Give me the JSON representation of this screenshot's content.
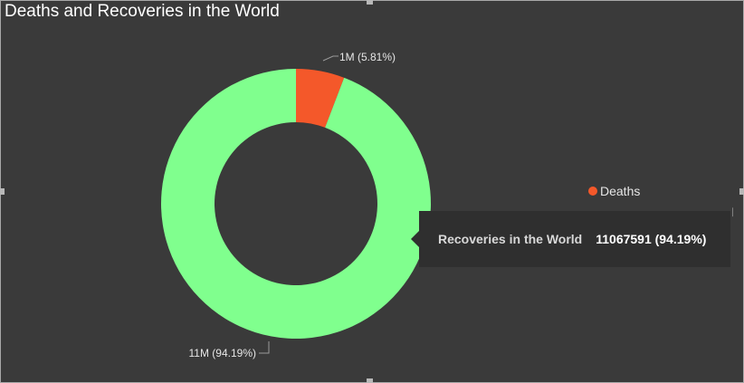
{
  "visual": {
    "title": "Deaths and Recoveries in the World"
  },
  "chart_data": {
    "type": "pie",
    "donut": true,
    "title": "Deaths and Recoveries in the World",
    "slices": [
      {
        "name": "Deaths",
        "label": "1M (5.81%)",
        "value": 5.81,
        "color": "#f4582a"
      },
      {
        "name": "Recoveries in the World",
        "label": "11M (94.19%)",
        "value": 94.19,
        "color": "#80ff8e"
      }
    ],
    "legend": {
      "placement": "right",
      "entries": [
        {
          "name": "Deaths",
          "color": "#f4582a"
        }
      ],
      "overflow_glyph": "ᛁ"
    },
    "tooltip": {
      "key": "Recoveries in the World",
      "value": "11067591 (94.19%)"
    }
  }
}
